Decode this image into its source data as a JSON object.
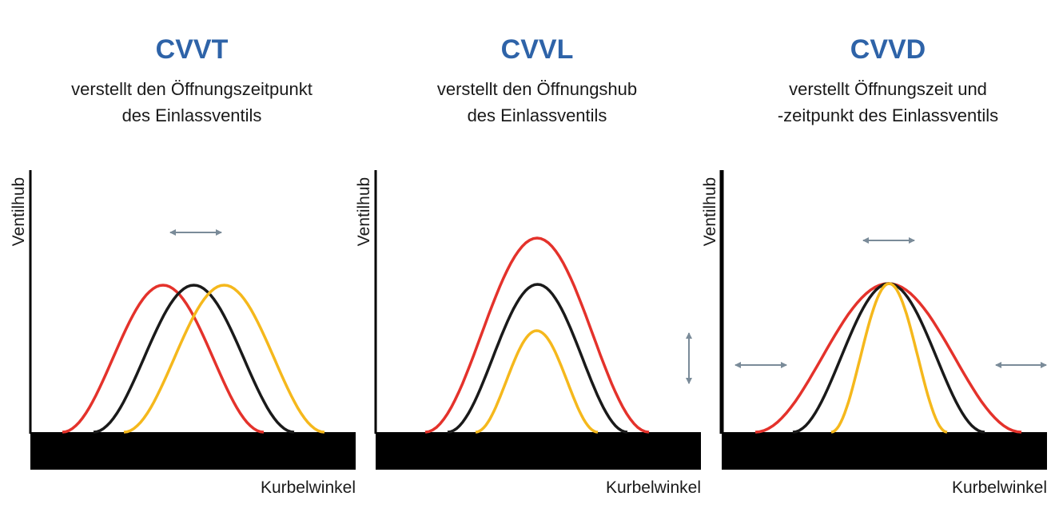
{
  "panels": [
    {
      "title": "CVVT",
      "subtitle": [
        "verstellt den Öffnungszeitpunkt",
        "des Einlassventils"
      ],
      "y_label": "Ventilhub",
      "x_label": "Kurbelwinkel"
    },
    {
      "title": "CVVL",
      "subtitle": [
        "verstellt den Öffnungshub",
        "des Einlassventils"
      ],
      "y_label": "Ventilhub",
      "x_label": "Kurbelwinkel"
    },
    {
      "title": "CVVD",
      "subtitle": [
        "verstellt Öffnungszeit und",
        "-zeitpunkt des Einlassventils"
      ],
      "y_label": "Ventilhub",
      "x_label": "Kurbelwinkel"
    }
  ]
}
